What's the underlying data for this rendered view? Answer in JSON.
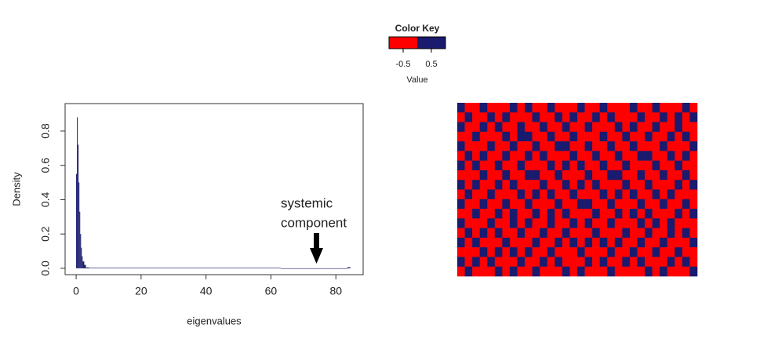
{
  "chart_data": [
    {
      "type": "histogram",
      "xlabel": "eigenvalues",
      "ylabel": "Density",
      "annotation": [
        "systemic",
        "component"
      ],
      "bins": [
        0,
        0.25,
        0.5,
        0.75,
        1,
        1.25,
        1.5,
        1.75,
        2,
        2.5,
        3,
        4,
        63,
        83.5,
        84.5
      ],
      "values": [
        0.55,
        0.88,
        0.72,
        0.5,
        0.33,
        0.2,
        0.12,
        0.07,
        0.04,
        0.02,
        0.005,
        0.003,
        0,
        0.006
      ],
      "color": "#1a1a6e",
      "xlim": [
        -3.4,
        88.4
      ],
      "xticks": [
        0,
        20,
        40,
        60,
        80
      ],
      "ylim": [
        -0.037,
        0.96
      ],
      "yticks": [
        {
          "value": 0,
          "label": "0.0"
        },
        0.2,
        0.4,
        0.6,
        0.8
      ]
    },
    {
      "type": "heatmap",
      "colorkey": {
        "title": "Color Key",
        "xlabel": "Value",
        "lim": [
          -1,
          1
        ],
        "ticks": [
          -0.5,
          0.5
        ],
        "colors": [
          "#ff0000",
          "#1a1a6e"
        ]
      },
      "values": [
        [
          1,
          -1,
          -1,
          1,
          -1,
          -1,
          -1,
          1,
          -1,
          1,
          -1,
          -1,
          1,
          -1,
          -1,
          -1,
          1,
          -1,
          -1,
          1,
          -1,
          -1,
          -1,
          1,
          -1,
          -1,
          1,
          -1,
          -1,
          -1,
          1,
          -1
        ],
        [
          -1,
          1,
          -1,
          -1,
          1,
          -1,
          1,
          -1,
          -1,
          -1,
          1,
          -1,
          -1,
          1,
          -1,
          1,
          -1,
          -1,
          1,
          -1,
          1,
          -1,
          -1,
          -1,
          1,
          -1,
          -1,
          1,
          -1,
          1,
          -1,
          1
        ],
        [
          1,
          -1,
          -1,
          1,
          -1,
          1,
          -1,
          -1,
          1,
          -1,
          -1,
          1,
          -1,
          -1,
          1,
          -1,
          -1,
          1,
          -1,
          -1,
          -1,
          1,
          -1,
          1,
          -1,
          -1,
          1,
          -1,
          -1,
          1,
          -1,
          -1
        ],
        [
          -1,
          -1,
          1,
          -1,
          -1,
          -1,
          1,
          -1,
          1,
          1,
          -1,
          -1,
          1,
          -1,
          -1,
          1,
          -1,
          -1,
          -1,
          1,
          -1,
          -1,
          1,
          -1,
          -1,
          1,
          -1,
          -1,
          1,
          -1,
          1,
          -1
        ],
        [
          1,
          -1,
          -1,
          -1,
          1,
          -1,
          -1,
          1,
          -1,
          -1,
          1,
          -1,
          -1,
          1,
          1,
          -1,
          -1,
          1,
          -1,
          -1,
          1,
          -1,
          -1,
          1,
          -1,
          -1,
          -1,
          1,
          -1,
          -1,
          -1,
          1
        ],
        [
          -1,
          1,
          -1,
          1,
          -1,
          -1,
          1,
          -1,
          -1,
          1,
          -1,
          1,
          -1,
          -1,
          -1,
          1,
          -1,
          -1,
          1,
          -1,
          -1,
          1,
          -1,
          -1,
          1,
          1,
          -1,
          -1,
          1,
          -1,
          1,
          -1
        ],
        [
          1,
          -1,
          1,
          -1,
          -1,
          1,
          -1,
          -1,
          1,
          -1,
          -1,
          -1,
          1,
          -1,
          1,
          -1,
          1,
          -1,
          -1,
          1,
          -1,
          -1,
          1,
          -1,
          -1,
          -1,
          1,
          -1,
          -1,
          1,
          -1,
          -1
        ],
        [
          -1,
          -1,
          -1,
          1,
          -1,
          -1,
          1,
          -1,
          -1,
          1,
          1,
          -1,
          -1,
          1,
          -1,
          -1,
          -1,
          1,
          -1,
          -1,
          1,
          1,
          -1,
          -1,
          1,
          -1,
          -1,
          1,
          -1,
          -1,
          1,
          -1
        ],
        [
          1,
          -1,
          1,
          -1,
          -1,
          1,
          -1,
          1,
          -1,
          -1,
          -1,
          1,
          -1,
          -1,
          1,
          -1,
          1,
          -1,
          1,
          -1,
          -1,
          -1,
          1,
          -1,
          -1,
          1,
          -1,
          -1,
          -1,
          1,
          -1,
          1
        ],
        [
          -1,
          1,
          -1,
          -1,
          1,
          -1,
          -1,
          -1,
          1,
          -1,
          1,
          -1,
          1,
          -1,
          -1,
          1,
          -1,
          -1,
          -1,
          1,
          -1,
          1,
          -1,
          1,
          -1,
          -1,
          1,
          -1,
          1,
          -1,
          -1,
          -1
        ],
        [
          1,
          -1,
          -1,
          1,
          -1,
          -1,
          1,
          -1,
          -1,
          1,
          -1,
          -1,
          -1,
          1,
          -1,
          -1,
          1,
          1,
          -1,
          -1,
          1,
          -1,
          -1,
          -1,
          1,
          -1,
          -1,
          1,
          -1,
          -1,
          1,
          -1
        ],
        [
          -1,
          -1,
          1,
          -1,
          -1,
          1,
          -1,
          1,
          -1,
          -1,
          1,
          -1,
          1,
          -1,
          1,
          -1,
          -1,
          -1,
          1,
          -1,
          -1,
          1,
          -1,
          1,
          -1,
          1,
          -1,
          -1,
          -1,
          1,
          -1,
          1
        ],
        [
          1,
          -1,
          -1,
          -1,
          1,
          -1,
          -1,
          1,
          -1,
          1,
          -1,
          -1,
          1,
          -1,
          -1,
          1,
          -1,
          1,
          -1,
          -1,
          1,
          -1,
          -1,
          -1,
          1,
          -1,
          1,
          -1,
          1,
          -1,
          -1,
          -1
        ],
        [
          -1,
          1,
          -1,
          1,
          -1,
          1,
          -1,
          -1,
          1,
          -1,
          -1,
          1,
          -1,
          -1,
          1,
          -1,
          -1,
          -1,
          1,
          -1,
          -1,
          -1,
          1,
          -1,
          -1,
          1,
          -1,
          -1,
          1,
          -1,
          1,
          -1
        ],
        [
          1,
          -1,
          1,
          -1,
          -1,
          -1,
          1,
          -1,
          -1,
          -1,
          1,
          -1,
          -1,
          1,
          -1,
          1,
          -1,
          1,
          -1,
          1,
          -1,
          1,
          -1,
          -1,
          1,
          -1,
          -1,
          1,
          -1,
          -1,
          -1,
          1
        ],
        [
          -1,
          -1,
          -1,
          1,
          -1,
          1,
          -1,
          1,
          -1,
          1,
          -1,
          -1,
          1,
          -1,
          -1,
          -1,
          1,
          -1,
          -1,
          -1,
          1,
          -1,
          -1,
          1,
          -1,
          -1,
          1,
          -1,
          -1,
          1,
          -1,
          -1
        ],
        [
          1,
          -1,
          1,
          -1,
          1,
          -1,
          -1,
          -1,
          1,
          -1,
          -1,
          1,
          -1,
          1,
          -1,
          -1,
          -1,
          1,
          -1,
          1,
          -1,
          -1,
          1,
          -1,
          1,
          -1,
          -1,
          -1,
          1,
          -1,
          1,
          -1
        ],
        [
          -1,
          1,
          -1,
          -1,
          -1,
          1,
          -1,
          1,
          -1,
          -1,
          1,
          -1,
          -1,
          -1,
          1,
          -1,
          1,
          -1,
          -1,
          -1,
          1,
          -1,
          -1,
          -1,
          -1,
          1,
          -1,
          1,
          -1,
          -1,
          -1,
          1
        ]
      ]
    }
  ]
}
